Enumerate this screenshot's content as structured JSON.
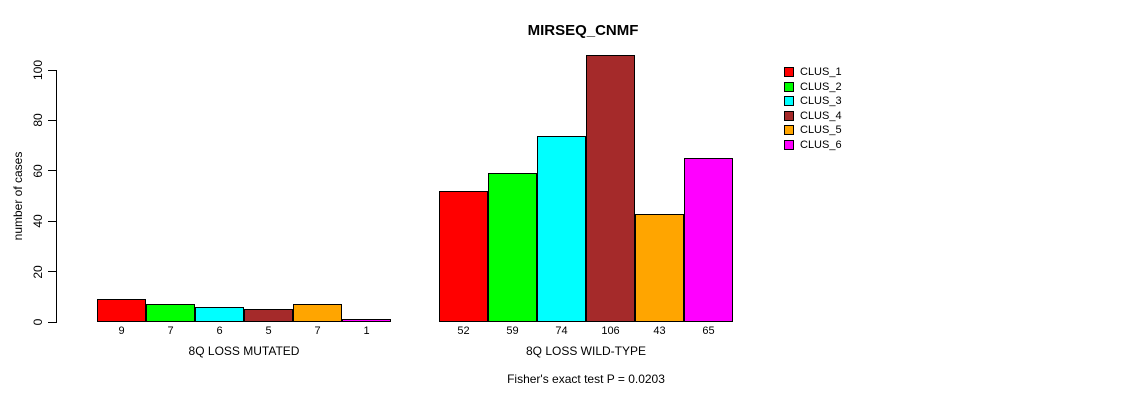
{
  "chart_data": {
    "type": "bar",
    "title": "MIRSEQ_CNMF",
    "ylabel": "number of cases",
    "ylim": [
      0,
      100
    ],
    "yticks": [
      0,
      20,
      40,
      60,
      80,
      100
    ],
    "grid": false,
    "legend_position": "right",
    "legend": [
      {
        "name": "CLUS_1",
        "color": "#FF0000"
      },
      {
        "name": "CLUS_2",
        "color": "#00FF00"
      },
      {
        "name": "CLUS_3",
        "color": "#00FFFF"
      },
      {
        "name": "CLUS_4",
        "color": "#A52A2A"
      },
      {
        "name": "CLUS_5",
        "color": "#FFA500"
      },
      {
        "name": "CLUS_6",
        "color": "#FF00FF"
      }
    ],
    "groups": [
      {
        "label": "8Q LOSS MUTATED",
        "values": [
          9,
          7,
          6,
          5,
          7,
          1
        ]
      },
      {
        "label": "8Q LOSS WILD-TYPE",
        "values": [
          52,
          59,
          74,
          106,
          43,
          65
        ]
      }
    ],
    "annotation": "Fisher's exact test P = 0.0203"
  }
}
